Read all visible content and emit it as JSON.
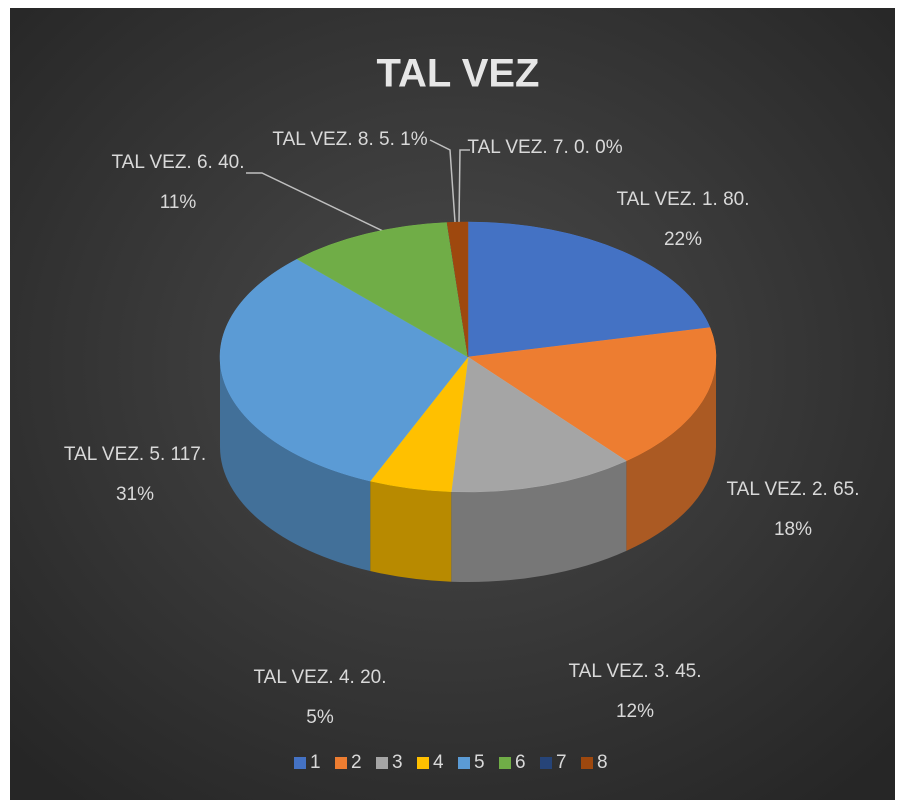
{
  "chart_data": {
    "type": "pie3d",
    "title": "TAL VEZ",
    "categories": [
      "1",
      "2",
      "3",
      "4",
      "5",
      "6",
      "7",
      "8"
    ],
    "values": [
      80,
      65,
      45,
      20,
      117,
      40,
      0,
      5
    ],
    "value_labels": [
      [
        "TAL VEZ. 1. 80.",
        "22%"
      ],
      [
        "TAL VEZ. 2. 65.",
        "18%"
      ],
      [
        "TAL VEZ. 3. 45.",
        "12%"
      ],
      [
        "TAL VEZ. 4. 20.",
        "5%"
      ],
      [
        "TAL VEZ. 5. 117.",
        "31%"
      ],
      [
        "TAL VEZ. 6. 40.",
        "11%"
      ],
      [
        "TAL VEZ. 7. 0. 0%"
      ],
      [
        "TAL VEZ. 8. 5. 1%"
      ]
    ],
    "colors": [
      "#4472c4",
      "#ed7d31",
      "#a5a5a5",
      "#ffc000",
      "#5b9bd5",
      "#70ad47",
      "#264478",
      "#9e480e"
    ],
    "legend": "bottom"
  }
}
